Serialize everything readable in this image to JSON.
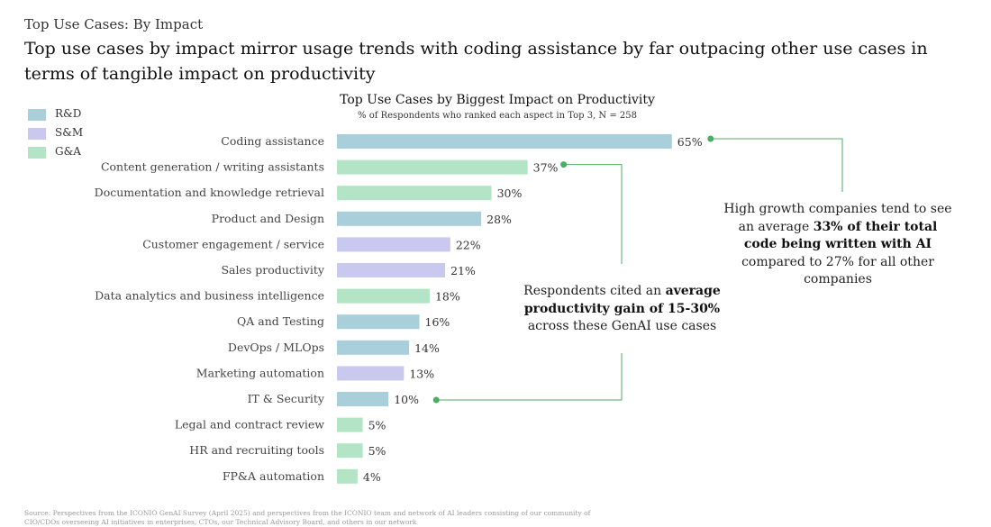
{
  "header": {
    "kicker": "Top Use Cases: By Impact",
    "headline": "Top use cases by impact mirror usage trends with coding assistance by far outpacing other use cases in terms of tangible impact on productivity"
  },
  "legend": [
    {
      "label": "R&D",
      "color": "#a9cfdb"
    },
    {
      "label": "S&M",
      "color": "#c9c8ee"
    },
    {
      "label": "G&A",
      "color": "#b3e4c6"
    }
  ],
  "chart_data": {
    "type": "bar",
    "orientation": "horizontal",
    "title": "Top Use Cases by Biggest Impact on Productivity",
    "subtitle": "% of Respondents who ranked each aspect in Top 3, N = 258",
    "xlim": [
      0,
      100
    ],
    "unit": "%",
    "grid": false,
    "legend_position": "top-left",
    "categories": [
      "Coding assistance",
      "Content generation / writing assistants",
      "Documentation and knowledge retrieval",
      "Product and Design",
      "Customer engagement / service",
      "Sales productivity",
      "Data analytics and business intelligence",
      "QA and Testing",
      "DevOps / MLOps",
      "Marketing automation",
      "IT & Security",
      "Legal and contract review",
      "HR and recruiting tools",
      "FP&A automation"
    ],
    "values": [
      65,
      37,
      30,
      28,
      22,
      21,
      18,
      16,
      14,
      13,
      10,
      5,
      5,
      4
    ],
    "groups": [
      "R&D",
      "G&A",
      "G&A",
      "R&D",
      "S&M",
      "S&M",
      "G&A",
      "R&D",
      "R&D",
      "S&M",
      "R&D",
      "G&A",
      "G&A",
      "G&A"
    ],
    "value_labels": [
      "65%",
      "37%",
      "30%",
      "28%",
      "22%",
      "21%",
      "18%",
      "16%",
      "14%",
      "13%",
      "10%",
      "5%",
      "5%",
      "4%"
    ]
  },
  "callouts": {
    "right": {
      "pre": "High growth companies tend to see an average ",
      "bold": "33% of their total code being written with AI",
      "post": " compared to 27% for all other companies"
    },
    "mid": {
      "pre": "Respondents cited an ",
      "bold": "average productivity gain of 15-30%",
      "post": " across these GenAI use cases"
    }
  },
  "colors": {
    "connector": "#4cae63"
  },
  "source": "Source: Perspectives from the ICONIO GenAI Survey (April 2025) and perspectives from the ICONIO team and network of AI leaders consisting of our community of CIO/CDOs overseeing AI initiatives in enterprises, CTOs, our Technical Advisory Board, and others in our network"
}
